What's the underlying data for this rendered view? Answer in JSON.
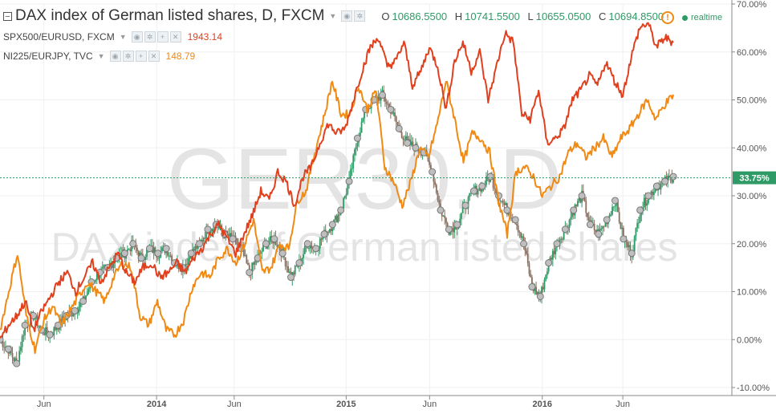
{
  "watermark": {
    "big": "GER30, D",
    "small": "DAX index of German listed shares"
  },
  "legend": {
    "main_title": "DAX index of German listed shares, D, FXCM",
    "ohlc": [
      {
        "key": "O",
        "value": "10686.5500"
      },
      {
        "key": "H",
        "value": "10741.5500"
      },
      {
        "key": "L",
        "value": "10655.0500"
      },
      {
        "key": "C",
        "value": "10694.8500"
      }
    ],
    "comparisons": [
      {
        "label": "SPX500/EURUSD, FXCM",
        "value": "1943.14",
        "color": "#e0401e"
      },
      {
        "label": "NI225/EURJPY, TVC",
        "value": "148.79",
        "color": "#f08a14"
      }
    ],
    "realtime": "realtime"
  },
  "colors": {
    "spx": "#e0401e",
    "ni225": "#f08a14",
    "dax_up": "#2f9a66",
    "dax_down": "#8b6f5e",
    "marker": "#bfbfbf"
  },
  "chart_data": {
    "type": "line",
    "title": "DAX index of German listed shares, D, FXCM",
    "y_unit": "percent change",
    "ylim": [
      -10,
      70
    ],
    "y_ticks": [
      "70.00%",
      "60.00%",
      "50.00%",
      "40.00%",
      "30.00%",
      "20.00%",
      "10.00%",
      "0.00%",
      "-10.00%"
    ],
    "x_ticks": [
      "Jun",
      "2014",
      "Jun",
      "2015",
      "Jun",
      "2016",
      "Jun"
    ],
    "current_value_label": "33.75%",
    "current_value": 33.75,
    "grid": true,
    "series": [
      {
        "name": "SPX500/EURUSD, FXCM",
        "style": "line",
        "color": "#e0401e",
        "values": [
          0,
          3,
          5,
          8,
          2,
          6,
          9,
          12,
          14,
          10,
          13,
          16,
          12,
          15,
          18,
          14,
          12,
          15,
          16,
          13,
          14,
          16,
          14,
          17,
          19,
          22,
          24,
          21,
          18,
          22,
          26,
          31,
          29,
          35,
          33,
          28,
          34,
          36,
          41,
          45,
          43,
          44,
          50,
          56,
          61,
          63,
          57,
          58,
          62,
          53,
          56,
          61,
          57,
          48,
          58,
          62,
          56,
          60,
          50,
          57,
          64,
          62,
          47,
          46,
          52,
          41,
          42,
          44,
          50,
          52,
          55,
          53,
          58,
          54,
          51,
          59,
          65,
          66,
          61,
          63,
          62
        ]
      },
      {
        "name": "NI225/EURJPY, TVC",
        "style": "line",
        "color": "#f08a14",
        "values": [
          2,
          10,
          18,
          5,
          -2,
          4,
          7,
          3,
          6,
          9,
          12,
          10,
          8,
          13,
          16,
          15,
          5,
          3,
          8,
          2,
          1,
          4,
          11,
          14,
          13,
          17,
          19,
          16,
          20,
          25,
          14,
          15,
          20,
          19,
          29,
          31,
          39,
          46,
          54,
          47,
          47,
          53,
          48,
          52,
          36,
          33,
          28,
          33,
          40,
          38,
          45,
          54,
          46,
          37,
          43,
          42,
          39,
          29,
          22,
          35,
          36,
          34,
          30,
          32,
          34,
          39,
          41,
          38,
          40,
          42,
          38,
          42,
          44,
          47,
          50,
          46,
          49,
          51
        ]
      },
      {
        "name": "DAX index of German listed shares, D, FXCM",
        "style": "candles",
        "values": [
          0,
          -2,
          -5,
          3,
          5,
          2,
          1,
          3,
          5,
          6,
          8,
          12,
          14,
          15,
          17,
          18,
          20,
          17,
          19,
          18,
          19,
          16,
          15,
          18,
          20,
          23,
          24,
          22,
          21,
          19,
          14,
          17,
          20,
          21,
          18,
          13,
          16,
          20,
          19,
          22,
          24,
          27,
          33,
          42,
          48,
          50,
          51,
          48,
          44,
          41,
          40,
          39,
          35,
          27,
          23,
          24,
          28,
          31,
          32,
          34,
          30,
          27,
          25,
          20,
          11,
          9,
          16,
          20,
          23,
          27,
          30,
          24,
          22,
          25,
          29,
          21,
          18,
          27,
          30,
          32,
          33,
          34
        ]
      }
    ]
  }
}
